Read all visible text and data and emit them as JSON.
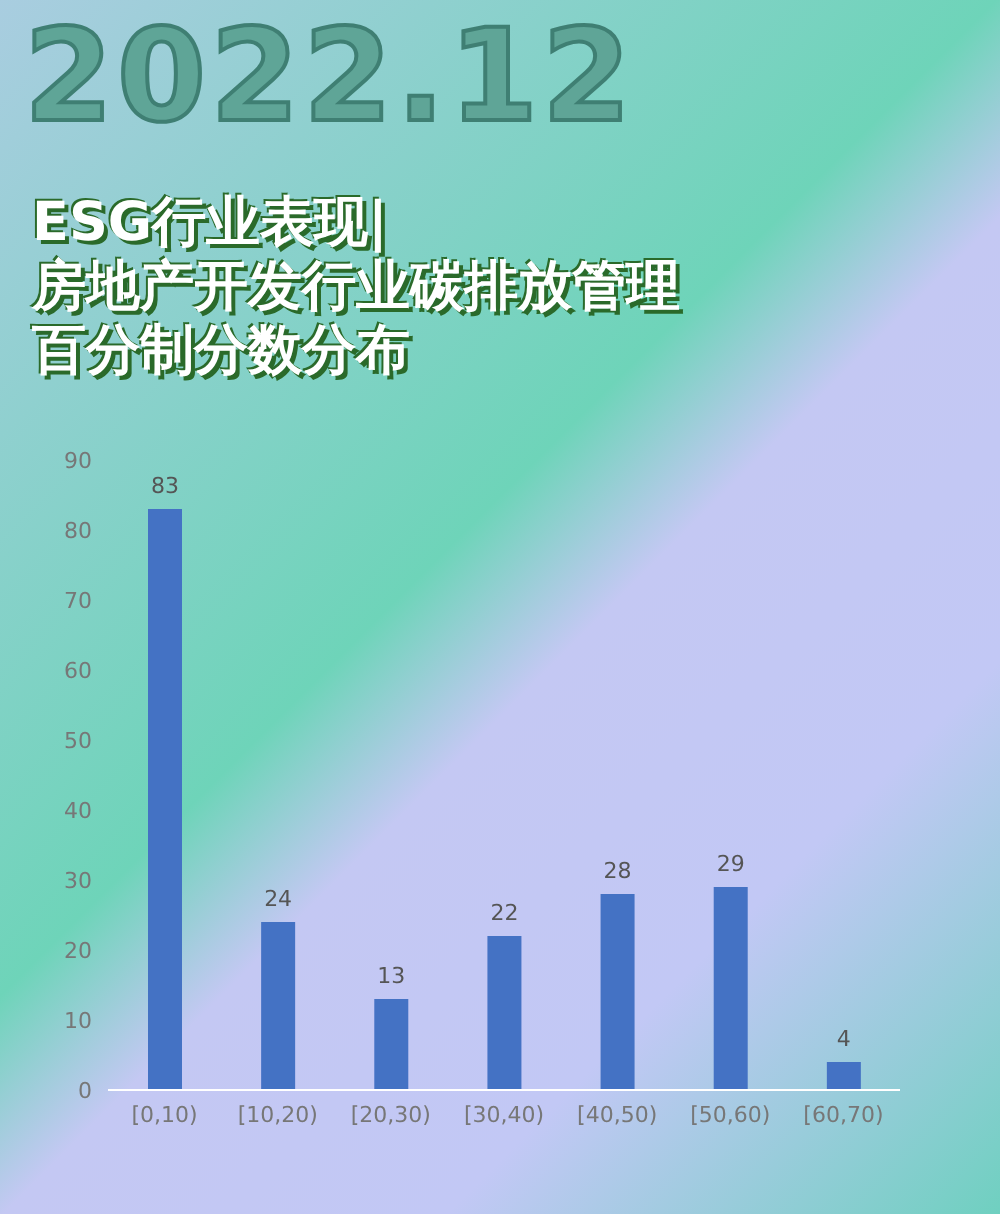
{
  "chart_data": {
    "type": "bar",
    "title": "ESG行业表现|",
    "subtitle": "房地产开发行业碳排放管理百分制分数分布",
    "annotations": [
      "2022.12"
    ],
    "categories": [
      "[0,10)",
      "[10,20)",
      "[20,30)",
      "[30,40)",
      "[40,50)",
      "[50,60)",
      "[60,70)"
    ],
    "values": [
      83,
      24,
      13,
      22,
      28,
      29,
      4
    ],
    "color": "#4472c4",
    "ylim": [
      0,
      90
    ],
    "yticks": [
      0,
      10,
      20,
      30,
      40,
      50,
      60,
      70,
      80,
      90
    ],
    "grid": false,
    "data_labels": true
  }
}
